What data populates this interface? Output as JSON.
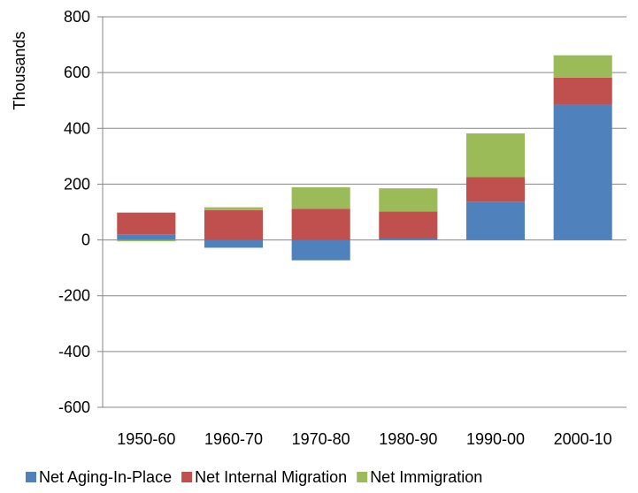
{
  "chart_data": {
    "type": "bar",
    "stacked": true,
    "title": "",
    "xlabel": "",
    "ylabel": "Thousands",
    "ylim": [
      -600,
      800
    ],
    "yticks": [
      -600,
      -400,
      -200,
      0,
      200,
      400,
      600,
      800
    ],
    "categories": [
      "1950-60",
      "1960-70",
      "1970-80",
      "1980-90",
      "1990-00",
      "2000-10"
    ],
    "series": [
      {
        "name": "Net Aging-In-Place",
        "color": "#4F81BD",
        "values": [
          20,
          -28,
          -73,
          5,
          137,
          485
        ]
      },
      {
        "name": "Net Internal Migration",
        "color": "#C0504D",
        "values": [
          78,
          107,
          112,
          97,
          88,
          97
        ]
      },
      {
        "name": "Net Immigration",
        "color": "#9BBB59",
        "values": [
          -5,
          10,
          77,
          83,
          157,
          80
        ]
      }
    ],
    "grid": true,
    "legend_position": "bottom"
  }
}
